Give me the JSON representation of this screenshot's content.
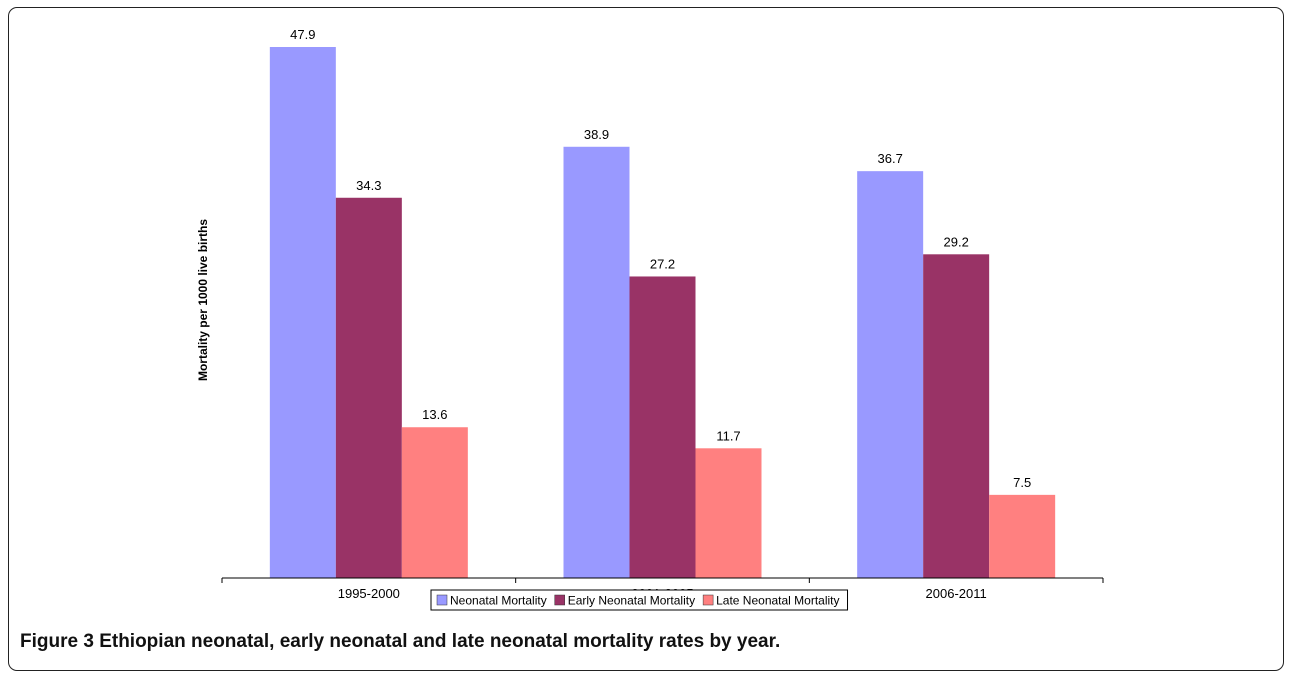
{
  "chart_data": {
    "type": "bar",
    "ylabel": "Mortality per 1000 live births",
    "xlabel": "",
    "categories": [
      "1995-2000",
      "2001-2005",
      "2006-2011"
    ],
    "series": [
      {
        "name": "Neonatal Mortality",
        "values": [
          47.9,
          38.9,
          36.7
        ],
        "color": "#9999ff"
      },
      {
        "name": "Early Neonatal Mortality",
        "values": [
          34.3,
          27.2,
          29.2
        ],
        "color": "#993366"
      },
      {
        "name": "Late Neonatal Mortality",
        "values": [
          13.6,
          11.7,
          7.5
        ],
        "color": "#ff8080"
      }
    ],
    "ylim": [
      0,
      47.9
    ],
    "grid": false,
    "legend_position": "bottom"
  },
  "caption": {
    "label": "Figure 3",
    "text": "Ethiopian neonatal, early neonatal and late neonatal mortality rates by year."
  }
}
